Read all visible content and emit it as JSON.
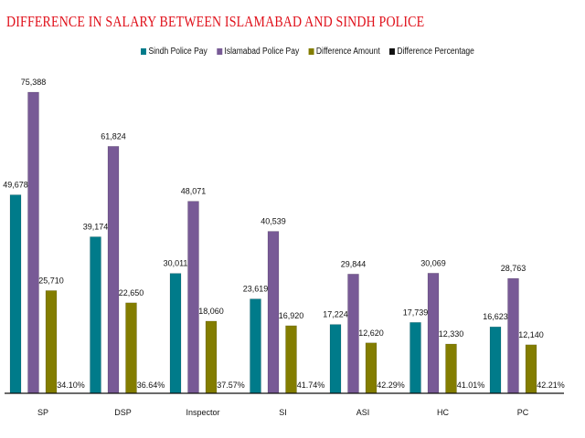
{
  "chart_data": {
    "type": "bar",
    "title": "DIFFERENCE IN SALARY BETWEEN ISLAMABAD AND SINDH POLICE",
    "xlabel": "",
    "ylabel": "",
    "ylim": [
      0,
      80000
    ],
    "grid": false,
    "legend_position": "top-right",
    "categories": [
      "SP",
      "DSP",
      "Inspector",
      "SI",
      "ASI",
      "HC",
      "PC"
    ],
    "series": [
      {
        "name": "Sindh Police Pay",
        "color": "#007b8a",
        "values": [
          49678,
          39174,
          30011,
          23619,
          17224,
          17739,
          16623
        ],
        "labels": [
          "49,678",
          "39,174",
          "30,011",
          "23,619",
          "17,224",
          "17,739",
          "16,623"
        ]
      },
      {
        "name": "Islamabad Police Pay",
        "color": "#785a96",
        "values": [
          75388,
          61824,
          48071,
          40539,
          29844,
          30069,
          28763
        ],
        "labels": [
          "75,388",
          "61,824",
          "48,071",
          "40,539",
          "29,844",
          "30,069",
          "28,763"
        ]
      },
      {
        "name": "Difference Amount",
        "color": "#837d00",
        "values": [
          25710,
          22650,
          18060,
          16920,
          12620,
          12330,
          12140
        ],
        "labels": [
          "25,710",
          "22,650",
          "18,060",
          "16,920",
          "12,620",
          "12,330",
          "12,140"
        ]
      },
      {
        "name": "Difference Percentage",
        "color": "#111111",
        "values": [
          34.1,
          36.64,
          37.57,
          41.74,
          42.29,
          41.01,
          42.21
        ],
        "labels": [
          "34.10%",
          "36.64%",
          "37.57%",
          "41.74%",
          "42.29%",
          "41.01%",
          "42.21%"
        ]
      }
    ]
  }
}
